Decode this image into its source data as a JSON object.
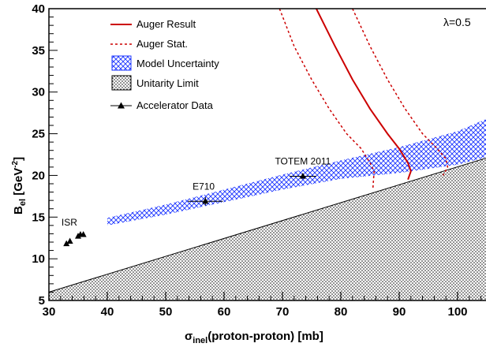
{
  "chart_data": {
    "type": "line",
    "xlabel": {
      "main": "σ",
      "sub": "inel",
      "rest": "(proton-proton)  [mb]"
    },
    "ylabel": {
      "main": "B",
      "sub": "el",
      "unit_open": "  [GeV",
      "unit_sup": "-2",
      "unit_close": "]"
    },
    "xlim": [
      30,
      105
    ],
    "ylim": [
      5,
      40
    ],
    "xticks": [
      30,
      40,
      50,
      60,
      70,
      80,
      90,
      100
    ],
    "yticks": [
      5,
      10,
      15,
      20,
      25,
      30,
      35,
      40
    ],
    "lambda_label": "λ=0.5",
    "colors": {
      "auger": "#cc0000",
      "band": "#1a33ff",
      "accel": "#000000"
    },
    "legend": {
      "placement": "top-left",
      "items": [
        {
          "label": "Auger Result",
          "kind": "solid-line"
        },
        {
          "label": "Auger Stat.",
          "kind": "dashed-line"
        },
        {
          "label": "Model Uncertainty",
          "kind": "cross-hatch"
        },
        {
          "label": "Unitarity Limit",
          "kind": "dots"
        },
        {
          "label": "Accelerator Data",
          "kind": "marker"
        }
      ]
    },
    "annotations": [
      {
        "text": "ISR",
        "x": 33.5,
        "y": 14.0
      },
      {
        "text": "E710",
        "x": 56.5,
        "y": 18.3
      },
      {
        "text": "TOTEM 2011",
        "x": 73.5,
        "y": 21.3
      }
    ],
    "unitarity_limit": {
      "x": [
        30,
        105
      ],
      "y": [
        6.0,
        22.1
      ]
    },
    "model_uncertainty": {
      "upper": {
        "x": [
          40,
          50,
          60,
          70,
          80,
          90,
          100,
          105
        ],
        "y": [
          14.9,
          16.5,
          18.3,
          20.1,
          21.8,
          23.4,
          25.3,
          26.8
        ]
      },
      "lower": {
        "x": [
          40,
          50,
          60,
          70,
          80,
          90,
          100,
          105
        ],
        "y": [
          14.0,
          15.3,
          16.8,
          18.3,
          19.6,
          20.3,
          21.3,
          22.2
        ]
      }
    },
    "auger_result": {
      "x": [
        75.8,
        79,
        82,
        85,
        88,
        90,
        91.5,
        92,
        91.5
      ],
      "y": [
        40,
        35.5,
        31.5,
        28.0,
        25.0,
        23.2,
        21.5,
        20.5,
        19.5
      ]
    },
    "auger_stat_low": {
      "x": [
        69.5,
        72,
        75,
        78,
        81,
        83.5,
        85,
        85.7,
        85.5
      ],
      "y": [
        40,
        35.5,
        31.5,
        28.0,
        25.0,
        23.2,
        21.5,
        20.5,
        18.5
      ]
    },
    "auger_stat_high": {
      "x": [
        82,
        85,
        88,
        91,
        94,
        96.5,
        98,
        98.3,
        97.5
      ],
      "y": [
        40,
        35.5,
        31.5,
        28.0,
        25.0,
        23.2,
        22.0,
        21.0,
        20.0
      ]
    },
    "accelerator_data": [
      {
        "x": 33.0,
        "y": 11.8,
        "xerr": 0,
        "yerr": 0.1
      },
      {
        "x": 33.6,
        "y": 12.1,
        "xerr": 0,
        "yerr": 0.1
      },
      {
        "x": 35.0,
        "y": 12.7,
        "xerr": 0,
        "yerr": 0.1
      },
      {
        "x": 35.4,
        "y": 12.9,
        "xerr": 0,
        "yerr": 0.1
      },
      {
        "x": 35.9,
        "y": 12.9,
        "xerr": 0,
        "yerr": 0.1
      },
      {
        "x": 56.8,
        "y": 16.9,
        "xerr": 3.0,
        "yerr": 0.5
      },
      {
        "x": 73.5,
        "y": 19.9,
        "xerr": 2.3,
        "yerr": 0.3
      }
    ]
  }
}
